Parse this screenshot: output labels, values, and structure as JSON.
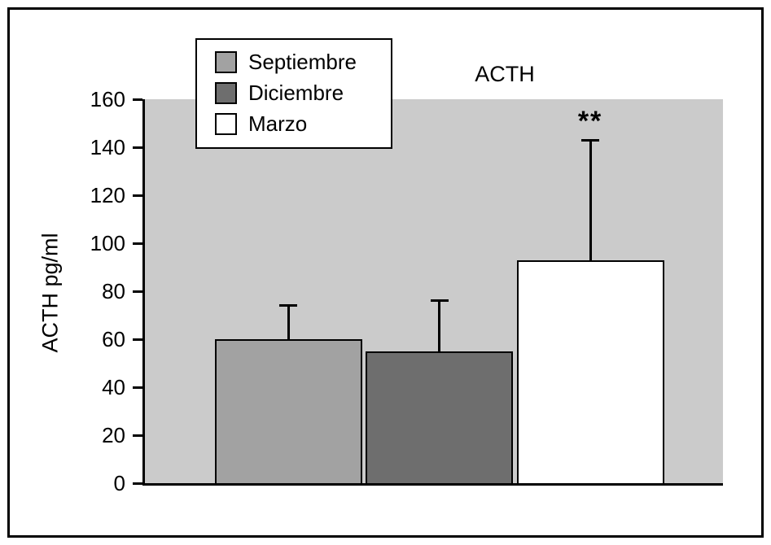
{
  "chart_data": {
    "type": "bar",
    "title": "ACTH",
    "ylabel": "ACTH pg/ml",
    "xlabel": "",
    "categories": [
      "Septiembre",
      "Diciembre",
      "Marzo"
    ],
    "values": [
      60,
      55,
      93
    ],
    "errors_upper": [
      14,
      21,
      50
    ],
    "colors": [
      "#a2a2a2",
      "#6e6e6e",
      "#ffffff"
    ],
    "plot_background": "#cbcbcb",
    "ylim": [
      0,
      160
    ],
    "ytick_step": 20,
    "grid": false,
    "legend_position": "top-left",
    "annotations": [
      {
        "category": "Marzo",
        "text": "**"
      }
    ]
  }
}
